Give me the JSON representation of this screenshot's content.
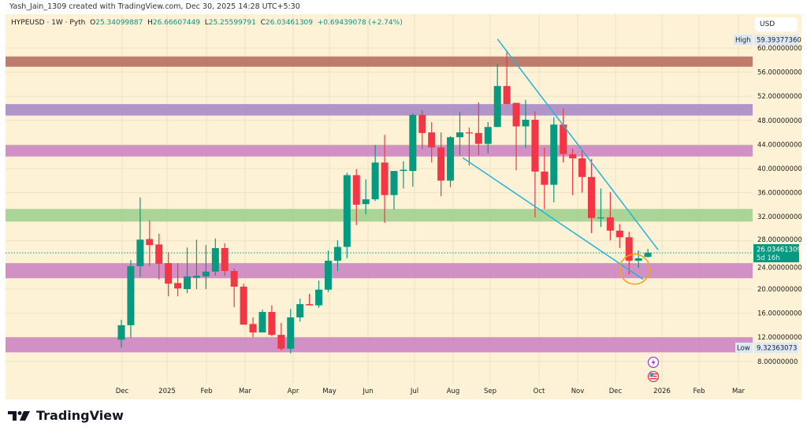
{
  "header": {
    "creator_line": "Yash_Jain_1309 created with TradingView.com, Dec 30, 2025 14:28 UTC+5:30"
  },
  "legend": {
    "symbol": "HYPEUSD · 1W · Pyth",
    "open_label": "O",
    "open": "25.34099887",
    "high_label": "H",
    "high": "26.66607449",
    "low_label": "L",
    "low": "25.25599791",
    "close_label": "C",
    "close": "26.03461309",
    "change": "+0.69439078 (+2.74%)"
  },
  "price_axis": {
    "currency": "USD",
    "ticks": [
      "60.00000000",
      "56.00000000",
      "52.00000000",
      "48.00000000",
      "44.00000000",
      "40.00000000",
      "36.00000000",
      "32.00000000",
      "28.00000000",
      "24.00000000",
      "20.00000000",
      "16.00000000",
      "12.00000000",
      "8.00000000"
    ],
    "high_label": "High",
    "high_value": "59.39377360",
    "low_label": "Low",
    "low_value": "9.32363073",
    "last_price": "26.03461309",
    "countdown": "5d 16h"
  },
  "time_axis": {
    "labels": [
      "Dec",
      "2025",
      "Feb",
      "Mar",
      "Apr",
      "May",
      "Jun",
      "Jul",
      "Aug",
      "Sep",
      "Oct",
      "Nov",
      "Dec",
      "2026",
      "Feb",
      "Mar"
    ]
  },
  "colors": {
    "up": "#089981",
    "down": "#f23645",
    "background": "#fdf1d6",
    "trendline": "#22b5d8",
    "circle": "#f7a21b"
  },
  "chart_data": {
    "type": "candlestick",
    "interval": "1W",
    "ylim": [
      8,
      60
    ],
    "scale": "linear",
    "grid": true,
    "candles_ohlc": [
      [
        11.6,
        14.9,
        10.3,
        14.0
      ],
      [
        14.0,
        24.8,
        11.9,
        23.8
      ],
      [
        23.8,
        35.2,
        22.0,
        28.2
      ],
      [
        28.3,
        31.4,
        23.8,
        27.3
      ],
      [
        27.4,
        29.2,
        21.6,
        24.2
      ],
      [
        24.3,
        26.1,
        18.8,
        20.9
      ],
      [
        21.0,
        24.3,
        18.8,
        20.1
      ],
      [
        20.0,
        26.9,
        19.3,
        22.1
      ],
      [
        21.9,
        28.2,
        20.0,
        22.2
      ],
      [
        22.1,
        27.3,
        20.0,
        22.9
      ],
      [
        22.9,
        28.4,
        22.2,
        26.8
      ],
      [
        26.8,
        27.6,
        22.2,
        23.0
      ],
      [
        23.0,
        23.4,
        17.0,
        20.4
      ],
      [
        20.4,
        20.9,
        14.1,
        14.1
      ],
      [
        14.2,
        15.3,
        12.0,
        12.8
      ],
      [
        12.8,
        16.6,
        12.8,
        16.2
      ],
      [
        16.2,
        17.3,
        12.2,
        12.4
      ],
      [
        12.4,
        14.4,
        9.8,
        10.1
      ],
      [
        10.1,
        16.7,
        9.32,
        15.3
      ],
      [
        15.3,
        18.4,
        14.6,
        17.5
      ],
      [
        17.5,
        19.2,
        17.3,
        17.3
      ],
      [
        17.3,
        21.4,
        16.9,
        19.9
      ],
      [
        19.9,
        26.4,
        19.5,
        24.7
      ],
      [
        24.7,
        28.1,
        23.0,
        27.0
      ],
      [
        27.0,
        39.3,
        25.1,
        38.9
      ],
      [
        38.9,
        39.9,
        30.6,
        34.0
      ],
      [
        34.1,
        38.2,
        32.4,
        34.9
      ],
      [
        34.9,
        43.9,
        34.6,
        41.0
      ],
      [
        41.0,
        45.6,
        31.0,
        35.6
      ],
      [
        35.6,
        39.6,
        33.2,
        39.6
      ],
      [
        39.6,
        41.2,
        36.7,
        39.8
      ],
      [
        39.6,
        49.2,
        37.0,
        48.9
      ],
      [
        48.9,
        49.7,
        43.2,
        45.9
      ],
      [
        46.0,
        47.7,
        41.0,
        43.5
      ],
      [
        43.5,
        46.0,
        35.4,
        38.0
      ],
      [
        38.0,
        45.4,
        36.9,
        45.2
      ],
      [
        45.2,
        49.4,
        42.2,
        46.0
      ],
      [
        46.0,
        46.8,
        40.5,
        45.9
      ],
      [
        45.9,
        51.0,
        42.2,
        44.1
      ],
      [
        44.1,
        47.7,
        42.5,
        46.9
      ],
      [
        46.9,
        57.4,
        46.9,
        53.7
      ],
      [
        53.7,
        59.39,
        50.7,
        50.7
      ],
      [
        50.9,
        50.9,
        39.7,
        47.0
      ],
      [
        47.0,
        51.4,
        43.4,
        48.1
      ],
      [
        48.1,
        49.5,
        31.9,
        39.5
      ],
      [
        39.5,
        43.5,
        33.3,
        37.3
      ],
      [
        37.3,
        48.5,
        34.4,
        47.3
      ],
      [
        47.3,
        50.0,
        41.0,
        42.4
      ],
      [
        42.4,
        43.3,
        35.6,
        41.7
      ],
      [
        41.7,
        43.1,
        36.0,
        38.6
      ],
      [
        38.6,
        41.6,
        29.3,
        31.8
      ],
      [
        31.8,
        36.7,
        30.3,
        31.9
      ],
      [
        31.9,
        36.1,
        28.1,
        29.7
      ],
      [
        29.7,
        30.8,
        26.8,
        28.6
      ],
      [
        28.6,
        29.5,
        22.4,
        24.7
      ],
      [
        24.7,
        26.4,
        23.5,
        25.1
      ],
      [
        25.34,
        26.67,
        25.26,
        26.03
      ]
    ],
    "zones": [
      {
        "from": 56.9,
        "to": 58.6,
        "color": "#b86f5e"
      },
      {
        "from": 48.8,
        "to": 50.7,
        "color": "#a88bc6"
      },
      {
        "from": 42.0,
        "to": 43.9,
        "color": "#cc86c2"
      },
      {
        "from": 31.2,
        "to": 33.3,
        "color": "#a2d28f"
      },
      {
        "from": 21.8,
        "to": 24.3,
        "color": "#cc86c2"
      },
      {
        "from": 9.5,
        "to": 12.0,
        "color": "#cc86c2"
      }
    ],
    "trendlines": [
      {
        "from_candle": 40,
        "from_price": 61.5,
        "to_candle": 57.1,
        "to_price": 26.5
      },
      {
        "from_candle": 36.3,
        "from_price": 41.8,
        "to_candle": 55.5,
        "to_price": 21.6
      }
    ],
    "highlight_circle": {
      "candle": 54.6,
      "price": 23.3
    }
  },
  "branding": {
    "logo_text": "TradingView"
  }
}
